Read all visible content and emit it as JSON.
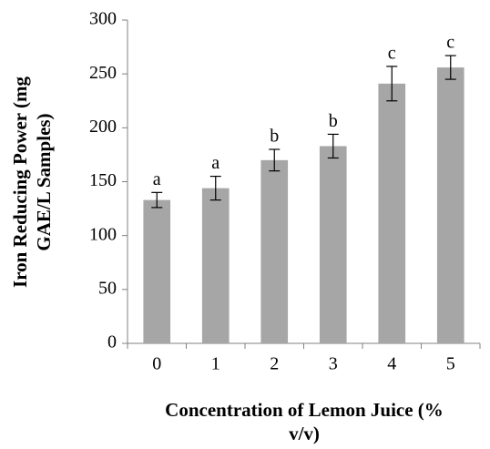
{
  "chart_data": {
    "type": "bar",
    "y_label": [
      "Iron Reducing Power (mg",
      "GAE/L Samples)"
    ],
    "x_label": [
      "Concentration of Lemon Juice (%",
      "v/v)"
    ],
    "categories": [
      "0",
      "1",
      "2",
      "3",
      "4",
      "5"
    ],
    "values": [
      133,
      144,
      170,
      183,
      241,
      256
    ],
    "errors": [
      7,
      11,
      10,
      11,
      16,
      11
    ],
    "value_labels": [
      "a",
      "a",
      "b",
      "b",
      "c",
      "c"
    ],
    "color": "#a6a6a6",
    "ylim": [
      0,
      300
    ],
    "yticks": [
      0,
      50,
      100,
      150,
      200,
      250,
      300
    ],
    "grid": false
  }
}
